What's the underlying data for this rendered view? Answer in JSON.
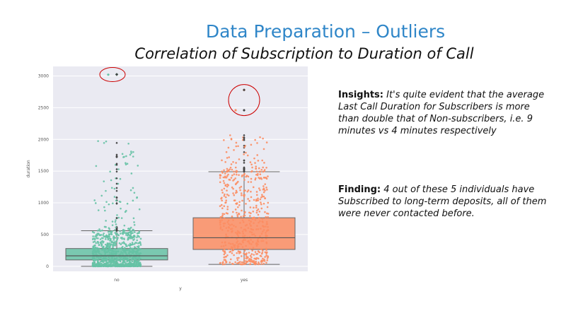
{
  "slide": {
    "title": "Data Preparation – Outliers",
    "subtitle": "Correlation of Subscription to Duration of Call"
  },
  "insights": {
    "heading": "Insights:",
    "text": " It's quite evident that the average Last Call Duration for Subscribers is more than double that of Non-subscribers, i.e. 9 minutes vs 4 minutes respectively"
  },
  "finding": {
    "heading": "Finding:",
    "text": " 4 out of these 5 individuals have Subscribed to long-term deposits, all of them were never contacted before."
  },
  "colors": {
    "no": "#66c2a5",
    "yes": "#fc8d62",
    "plot_bg": "#eaeaf2",
    "annotation": "#cc0000"
  },
  "chart_data": {
    "type": "box",
    "xlabel": "y",
    "ylabel": "duration",
    "ylim": [
      -80,
      3150
    ],
    "yticks": [
      0,
      500,
      1000,
      1500,
      2000,
      2500,
      3000
    ],
    "grid": true,
    "categories": [
      "no",
      "yes"
    ],
    "boxes": [
      {
        "category": "no",
        "whisker_low": 0,
        "q1": 100,
        "median": 165,
        "q3": 280,
        "whisker_high": 560,
        "outliers_range": [
          560,
          2000
        ],
        "extreme_outliers": [
          3020,
          3025
        ]
      },
      {
        "category": "yes",
        "whisker_low": 30,
        "q1": 265,
        "median": 450,
        "q3": 765,
        "whisker_high": 1490,
        "outliers_range": [
          1490,
          2090
        ],
        "extreme_outliers": [
          2460,
          2780
        ]
      }
    ],
    "annotations": [
      {
        "type": "circle",
        "around": "no",
        "values": [
          3020,
          3025
        ]
      },
      {
        "type": "circle",
        "around": "yes",
        "values": [
          2460,
          2780
        ]
      }
    ]
  }
}
